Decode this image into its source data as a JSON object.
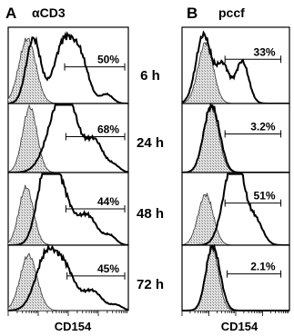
{
  "figure": {
    "panels": [
      {
        "letter": "A",
        "title": "αCD3",
        "axis_label": "CD154"
      },
      {
        "letter": "B",
        "title": "pccf",
        "axis_label": "CD154"
      }
    ],
    "timepoints": [
      "6 h",
      "24 h",
      "48 h",
      "72 h"
    ]
  },
  "chart_data": [
    {
      "type": "area",
      "panel": "A",
      "title": "αCD3",
      "xlabel": "CD154",
      "rows": [
        {
          "time": "6 h",
          "percent": "50%",
          "stimulated_profile": "broad, bimodal, shifted right",
          "control_profile": "narrow, left"
        },
        {
          "time": "24 h",
          "percent": "68%",
          "stimulated_profile": "broad, shifted right",
          "control_profile": "narrow, left"
        },
        {
          "time": "48 h",
          "percent": "44%",
          "stimulated_profile": "peak mid-range",
          "control_profile": "narrow, left"
        },
        {
          "time": "72 h",
          "percent": "45%",
          "stimulated_profile": "peak mid-range",
          "control_profile": "narrow, left"
        }
      ]
    },
    {
      "type": "area",
      "panel": "B",
      "title": "pccf",
      "xlabel": "CD154",
      "rows": [
        {
          "time": "6 h",
          "percent": "33%",
          "stimulated_profile": "left peak with right shoulder",
          "control_profile": "narrow, left"
        },
        {
          "time": "24 h",
          "percent": "3.2%",
          "stimulated_profile": "overlaps control",
          "control_profile": "narrow, left"
        },
        {
          "time": "48 h",
          "percent": "51%",
          "stimulated_profile": "shifted right",
          "control_profile": "narrow, left"
        },
        {
          "time": "72 h",
          "percent": "2.1%",
          "stimulated_profile": "overlaps control",
          "control_profile": "narrow, left"
        }
      ]
    }
  ]
}
